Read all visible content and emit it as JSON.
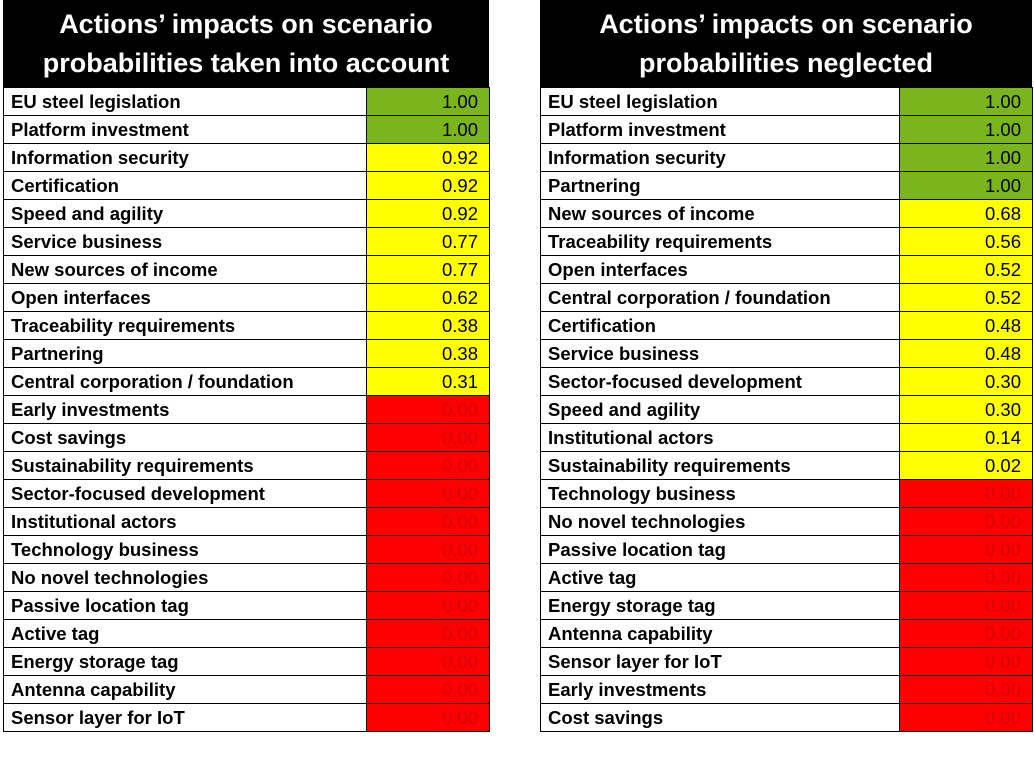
{
  "colors": {
    "green": "#7ab51d",
    "yellow": "#ffff00",
    "red": "#ff0000",
    "header_bg": "#000000",
    "header_text": "#ffffff"
  },
  "chart_data": [
    {
      "type": "table",
      "title": "Actions’ impacts on scenario\nprobabilities taken into account",
      "rows": [
        {
          "label": "EU steel legislation",
          "value": 1.0,
          "display": "1.00",
          "color": "green"
        },
        {
          "label": "Platform investment",
          "value": 1.0,
          "display": "1.00",
          "color": "green"
        },
        {
          "label": "Information security",
          "value": 0.92,
          "display": "0.92",
          "color": "yellow"
        },
        {
          "label": "Certification",
          "value": 0.92,
          "display": "0.92",
          "color": "yellow"
        },
        {
          "label": "Speed and agility",
          "value": 0.92,
          "display": "0.92",
          "color": "yellow"
        },
        {
          "label": "Service business",
          "value": 0.77,
          "display": "0.77",
          "color": "yellow"
        },
        {
          "label": "New sources of income",
          "value": 0.77,
          "display": "0.77",
          "color": "yellow"
        },
        {
          "label": "Open interfaces",
          "value": 0.62,
          "display": "0.62",
          "color": "yellow"
        },
        {
          "label": "Traceability requirements",
          "value": 0.38,
          "display": "0.38",
          "color": "yellow"
        },
        {
          "label": "Partnering",
          "value": 0.38,
          "display": "0.38",
          "color": "yellow"
        },
        {
          "label": "Central corporation / foundation",
          "value": 0.31,
          "display": "0.31",
          "color": "yellow"
        },
        {
          "label": "Early investments",
          "value": 0.0,
          "display": "0.00",
          "color": "red"
        },
        {
          "label": "Cost savings",
          "value": 0.0,
          "display": "0.00",
          "color": "red"
        },
        {
          "label": "Sustainability requirements",
          "value": 0.0,
          "display": "0.00",
          "color": "red"
        },
        {
          "label": "Sector-focused development",
          "value": 0.0,
          "display": "0.00",
          "color": "red"
        },
        {
          "label": "Institutional actors",
          "value": 0.0,
          "display": "0.00",
          "color": "red"
        },
        {
          "label": "Technology business",
          "value": 0.0,
          "display": "0.00",
          "color": "red"
        },
        {
          "label": "No novel technologies",
          "value": 0.0,
          "display": "0.00",
          "color": "red"
        },
        {
          "label": "Passive location tag",
          "value": 0.0,
          "display": "0.00",
          "color": "red"
        },
        {
          "label": "Active tag",
          "value": 0.0,
          "display": "0.00",
          "color": "red"
        },
        {
          "label": "Energy storage tag",
          "value": 0.0,
          "display": "0.00",
          "color": "red"
        },
        {
          "label": "Antenna capability",
          "value": 0.0,
          "display": "0.00",
          "color": "red"
        },
        {
          "label": "Sensor layer for IoT",
          "value": 0.0,
          "display": "0.00",
          "color": "red"
        }
      ]
    },
    {
      "type": "table",
      "title": "Actions’ impacts on scenario\nprobabilities neglected",
      "rows": [
        {
          "label": "EU steel legislation",
          "value": 1.0,
          "display": "1.00",
          "color": "green"
        },
        {
          "label": "Platform investment",
          "value": 1.0,
          "display": "1.00",
          "color": "green"
        },
        {
          "label": "Information security",
          "value": 1.0,
          "display": "1.00",
          "color": "green"
        },
        {
          "label": "Partnering",
          "value": 1.0,
          "display": "1.00",
          "color": "green"
        },
        {
          "label": "New sources of income",
          "value": 0.68,
          "display": "0.68",
          "color": "yellow"
        },
        {
          "label": "Traceability requirements",
          "value": 0.56,
          "display": "0.56",
          "color": "yellow"
        },
        {
          "label": "Open interfaces",
          "value": 0.52,
          "display": "0.52",
          "color": "yellow"
        },
        {
          "label": "Central corporation / foundation",
          "value": 0.52,
          "display": "0.52",
          "color": "yellow"
        },
        {
          "label": "Certification",
          "value": 0.48,
          "display": "0.48",
          "color": "yellow"
        },
        {
          "label": "Service business",
          "value": 0.48,
          "display": "0.48",
          "color": "yellow"
        },
        {
          "label": "Sector-focused development",
          "value": 0.3,
          "display": "0.30",
          "color": "yellow"
        },
        {
          "label": "Speed and agility",
          "value": 0.3,
          "display": "0.30",
          "color": "yellow"
        },
        {
          "label": "Institutional actors",
          "value": 0.14,
          "display": "0.14",
          "color": "yellow"
        },
        {
          "label": "Sustainability requirements",
          "value": 0.02,
          "display": "0.02",
          "color": "yellow"
        },
        {
          "label": "Technology business",
          "value": 0.0,
          "display": "0.00",
          "color": "red"
        },
        {
          "label": "No novel technologies",
          "value": 0.0,
          "display": "0.00",
          "color": "red"
        },
        {
          "label": "Passive location tag",
          "value": 0.0,
          "display": "0.00",
          "color": "red"
        },
        {
          "label": "Active tag",
          "value": 0.0,
          "display": "0.00",
          "color": "red"
        },
        {
          "label": "Energy storage tag",
          "value": 0.0,
          "display": "0.00",
          "color": "red"
        },
        {
          "label": "Antenna capability",
          "value": 0.0,
          "display": "0.00",
          "color": "red"
        },
        {
          "label": "Sensor layer for IoT",
          "value": 0.0,
          "display": "0.00",
          "color": "red"
        },
        {
          "label": "Early investments",
          "value": 0.0,
          "display": "0.00",
          "color": "red"
        },
        {
          "label": "Cost savings",
          "value": 0.0,
          "display": "0.00",
          "color": "red"
        }
      ]
    }
  ]
}
